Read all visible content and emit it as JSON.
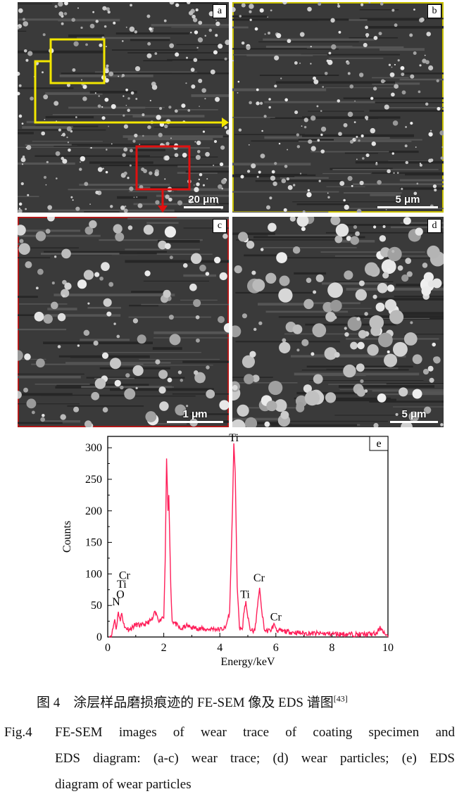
{
  "panels": [
    {
      "label": "a",
      "scale_bar": "20 μm"
    },
    {
      "label": "b",
      "scale_bar": "5 μm"
    },
    {
      "label": "c",
      "scale_bar": "1 μm"
    },
    {
      "label": "d",
      "scale_bar": "5 μm"
    }
  ],
  "colors": {
    "highlight_yellow": "#f2e600",
    "highlight_red": "#e01010",
    "spectrum": "#ff1f5a"
  },
  "chart_data": {
    "type": "line",
    "panel_label": "e",
    "xlabel": "Energy/keV",
    "ylabel": "Counts",
    "xlim": [
      0,
      10
    ],
    "ylim": [
      0,
      318
    ],
    "xticks": [
      0,
      2,
      4,
      6,
      8,
      10
    ],
    "yticks": [
      0,
      50,
      100,
      150,
      200,
      250,
      300
    ],
    "grid": false,
    "x": [
      0.05,
      0.15,
      0.25,
      0.3,
      0.38,
      0.45,
      0.5,
      0.6,
      0.8,
      1.0,
      1.2,
      1.4,
      1.6,
      1.65,
      1.75,
      1.85,
      1.95,
      2.0,
      2.05,
      2.1,
      2.15,
      2.18,
      2.25,
      2.3,
      2.4,
      2.6,
      2.8,
      3.0,
      3.2,
      3.5,
      3.8,
      4.0,
      4.2,
      4.35,
      4.45,
      4.5,
      4.55,
      4.62,
      4.7,
      4.8,
      4.87,
      4.93,
      5.0,
      5.1,
      5.25,
      5.35,
      5.42,
      5.5,
      5.6,
      5.8,
      5.95,
      6.05,
      6.5,
      7.0,
      8.0,
      9.0,
      9.6,
      9.7,
      9.8,
      9.9,
      10.0
    ],
    "y": [
      0,
      5,
      28,
      12,
      40,
      25,
      38,
      15,
      12,
      20,
      18,
      22,
      28,
      38,
      35,
      25,
      32,
      30,
      120,
      283,
      200,
      225,
      80,
      25,
      22,
      12,
      18,
      15,
      14,
      12,
      13,
      12,
      14,
      40,
      200,
      307,
      260,
      80,
      15,
      12,
      40,
      57,
      30,
      10,
      10,
      50,
      78,
      40,
      10,
      10,
      20,
      10,
      8,
      6,
      5,
      4,
      5,
      14,
      12,
      4,
      0
    ],
    "annotations": [
      {
        "text": "Ti",
        "x": 4.5,
        "y": 310
      },
      {
        "text": "Cr",
        "x": 0.6,
        "y": 92
      },
      {
        "text": "Ti",
        "x": 0.5,
        "y": 78
      },
      {
        "text": "O",
        "x": 0.45,
        "y": 62
      },
      {
        "text": "N",
        "x": 0.3,
        "y": 50
      },
      {
        "text": "Ti",
        "x": 4.9,
        "y": 62
      },
      {
        "text": "Cr",
        "x": 5.4,
        "y": 88
      },
      {
        "text": "Cr",
        "x": 6.0,
        "y": 26
      }
    ]
  },
  "caption": {
    "zh_prefix": "图 4",
    "zh_text": "涂层样品磨损痕迹的 FE-SEM 像及 EDS 谱图",
    "zh_ref": "[43]",
    "en_prefix": "Fig.4",
    "en_line1": "FE-SEM images of wear trace of coating specimen and",
    "en_line2": "EDS diagram: (a-c) wear trace; (d) wear particles; (e) EDS",
    "en_line3": "diagram of wear particles"
  }
}
